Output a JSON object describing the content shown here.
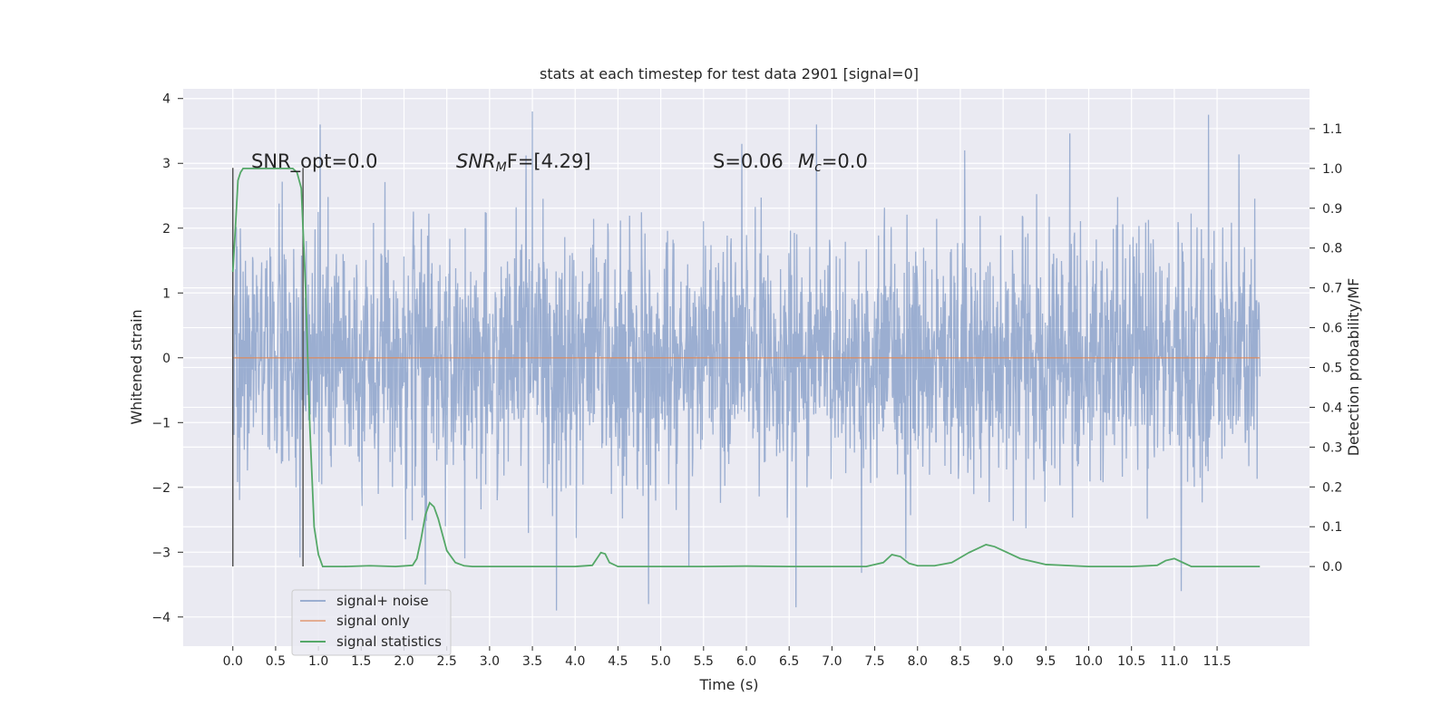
{
  "chart_data": {
    "type": "line",
    "title": "stats at each timestep for test data 2901 [signal=0]",
    "xlabel": "Time (s)",
    "ylabel_left": "Whitened strain",
    "ylabel_right": "Detection probability/MF",
    "xlim": [
      -0.58,
      12.58
    ],
    "ylim_left": [
      -4.45,
      4.15
    ],
    "ylim_right": [
      -0.2,
      1.2
    ],
    "x_ticks": [
      "0.0",
      "0.5",
      "1.0",
      "1.5",
      "2.0",
      "2.5",
      "3.0",
      "3.5",
      "4.0",
      "4.5",
      "5.0",
      "5.5",
      "6.0",
      "6.5",
      "7.0",
      "7.5",
      "8.0",
      "8.5",
      "9.0",
      "9.5",
      "10.0",
      "10.5",
      "11.0",
      "11.5"
    ],
    "x_tick_values": [
      0,
      0.5,
      1,
      1.5,
      2,
      2.5,
      3,
      3.5,
      4,
      4.5,
      5,
      5.5,
      6,
      6.5,
      7,
      7.5,
      8,
      8.5,
      9,
      9.5,
      10,
      10.5,
      11,
      11.5
    ],
    "y_left_ticks": [
      "4",
      "3",
      "2",
      "1",
      "0",
      "−1",
      "−2",
      "−3",
      "−4"
    ],
    "y_left_tick_values": [
      4,
      3,
      2,
      1,
      0,
      -1,
      -2,
      -3,
      -4
    ],
    "y_right_ticks": [
      "1.1",
      "1.0",
      "0.9",
      "0.8",
      "0.7",
      "0.6",
      "0.5",
      "0.4",
      "0.3",
      "0.2",
      "0.1",
      "0.0"
    ],
    "y_right_tick_values": [
      1.1,
      1.0,
      0.9,
      0.8,
      0.7,
      0.6,
      0.5,
      0.4,
      0.3,
      0.2,
      0.1,
      0.0
    ],
    "annotations": {
      "snr_opt": "SNR_opt=0.0",
      "snr_mf_prefix": "SNR",
      "snr_mf_sub": "M",
      "snr_mf_rest": "F=[4.29]",
      "s_stat": "S=0.06",
      "mc_prefix": "M",
      "mc_sub": "c",
      "mc_rest": "=0.0"
    },
    "legend": {
      "placement": "lower-left",
      "entries": [
        "signal+ noise",
        "signal only",
        "signal statistics"
      ]
    },
    "vertical_markers_x": [
      0.0,
      0.82
    ],
    "series": [
      {
        "name": "signal+ noise",
        "color": "#4c72b0",
        "kind": "noise",
        "x_range": [
          0.0,
          12.0
        ],
        "envelope_typical": [
          -1.7,
          1.7
        ],
        "notable_peaks": [
          {
            "x": 1.02,
            "y": 3.6
          },
          {
            "x": 3.5,
            "y": 3.8
          },
          {
            "x": 6.82,
            "y": 3.6
          },
          {
            "x": 11.4,
            "y": 3.75
          },
          {
            "x": 8.55,
            "y": 3.2
          },
          {
            "x": 3.78,
            "y": -3.9
          },
          {
            "x": 6.58,
            "y": -3.85
          },
          {
            "x": 2.25,
            "y": -3.5
          },
          {
            "x": 11.08,
            "y": -3.6
          }
        ]
      },
      {
        "name": "signal only",
        "color": "#dd8452",
        "x": [
          0.0,
          12.0
        ],
        "y": [
          0.0,
          0.0
        ]
      },
      {
        "name": "signal statistics",
        "color": "#55a868",
        "x": [
          0.0,
          0.03,
          0.06,
          0.09,
          0.12,
          0.18,
          0.3,
          0.5,
          0.7,
          0.75,
          0.8,
          0.85,
          0.9,
          0.95,
          1.0,
          1.05,
          1.1,
          1.3,
          1.6,
          1.9,
          2.1,
          2.15,
          2.2,
          2.25,
          2.3,
          2.35,
          2.4,
          2.45,
          2.5,
          2.6,
          2.7,
          2.8,
          3.0,
          3.5,
          4.0,
          4.2,
          4.3,
          4.35,
          4.4,
          4.5,
          4.7,
          5.0,
          5.5,
          6.0,
          6.5,
          7.0,
          7.4,
          7.6,
          7.7,
          7.8,
          7.9,
          8.0,
          8.2,
          8.4,
          8.6,
          8.8,
          8.9,
          9.0,
          9.2,
          9.5,
          10.0,
          10.5,
          10.8,
          10.9,
          11.0,
          11.1,
          11.2,
          11.5,
          12.0
        ],
        "y": [
          0.74,
          0.85,
          0.97,
          0.99,
          1.0,
          1.0,
          1.0,
          1.0,
          1.0,
          0.99,
          0.95,
          0.7,
          0.35,
          0.1,
          0.03,
          0.0,
          0.0,
          0.0,
          0.002,
          0.0,
          0.003,
          0.02,
          0.07,
          0.13,
          0.16,
          0.15,
          0.12,
          0.08,
          0.04,
          0.01,
          0.002,
          0.0,
          0.0,
          0.0,
          0.0,
          0.003,
          0.035,
          0.032,
          0.01,
          0.0,
          0.0,
          0.0,
          0.0,
          0.001,
          0.0,
          0.0,
          0.0,
          0.01,
          0.03,
          0.025,
          0.008,
          0.002,
          0.002,
          0.01,
          0.035,
          0.055,
          0.05,
          0.04,
          0.02,
          0.005,
          0.0,
          0.0,
          0.003,
          0.015,
          0.02,
          0.01,
          0.0,
          0.0,
          0.0
        ]
      }
    ]
  }
}
